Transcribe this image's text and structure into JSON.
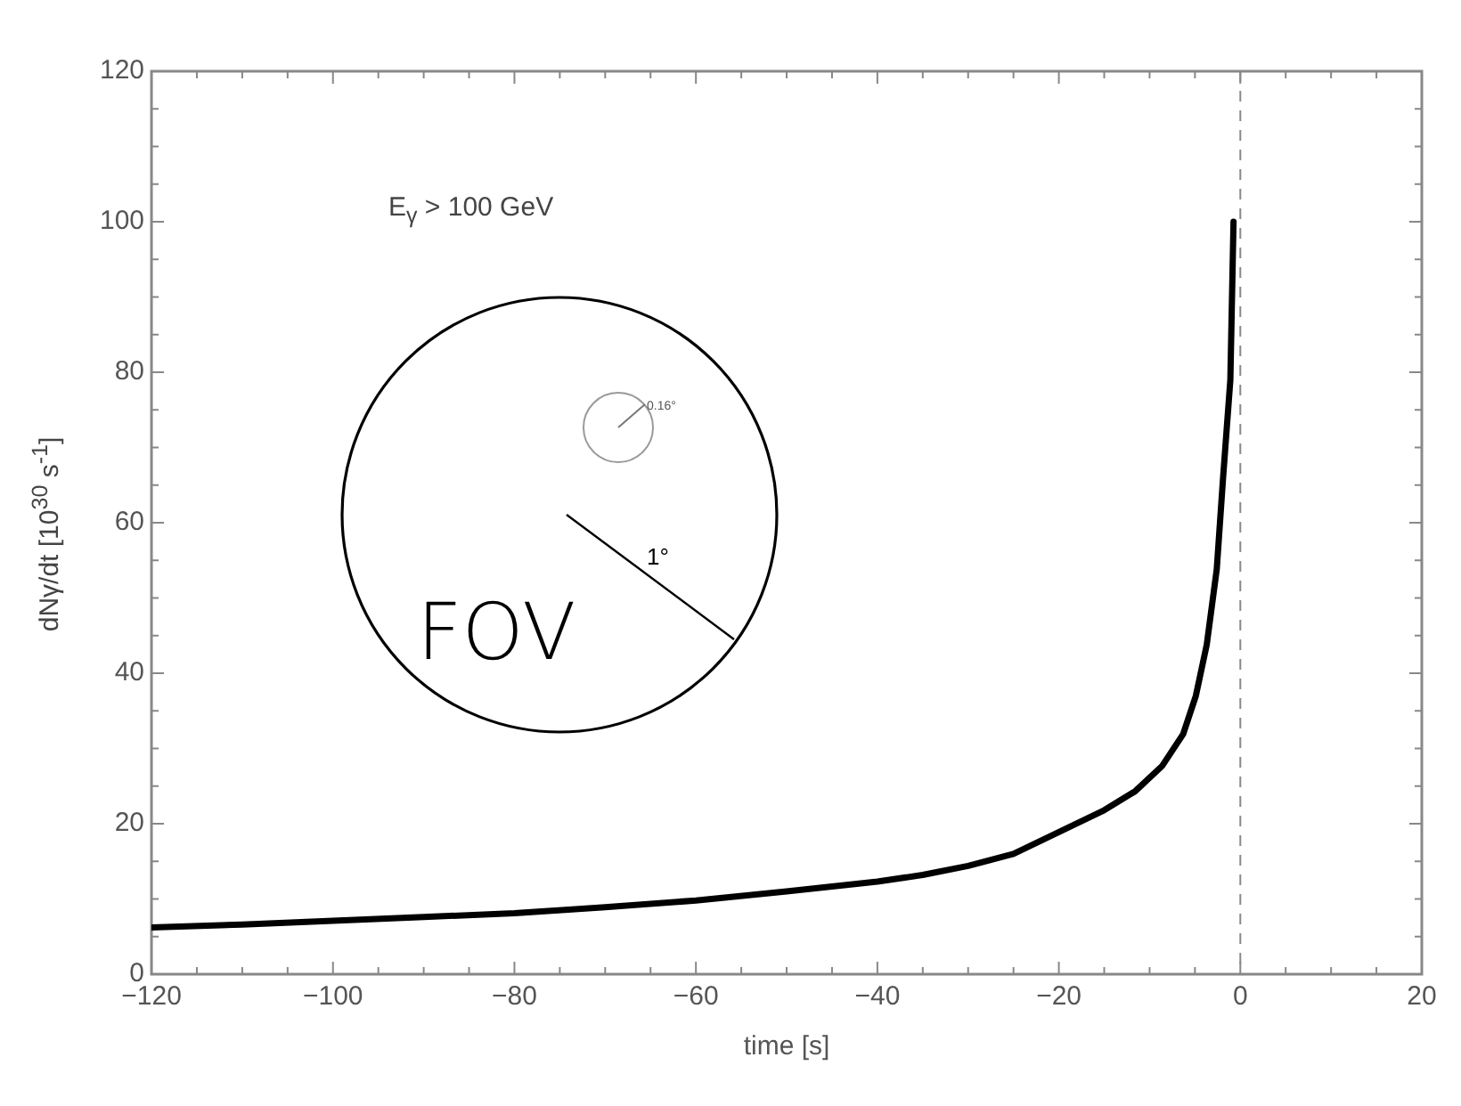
{
  "chart_data": {
    "type": "line",
    "xlabel": "time [s]",
    "ylabel": "dNγ/dt [10$^{30}$ s$^{-1}$]",
    "annotations": [
      "E$_{γ}$ > 100 GeV",
      "FOV",
      "1°",
      "0.16°"
    ],
    "x": [
      -120,
      -110,
      -100,
      -90,
      -80,
      -70,
      -60,
      -50,
      -40,
      -35,
      -30,
      -25,
      -20,
      -15,
      -11.6,
      -8.6,
      -6.3,
      -4.9,
      -3.7,
      -2.6,
      -1.9,
      -1.1,
      -0.75
    ],
    "series": [
      {
        "color": "#000000",
        "values": [
          6.2,
          6.6,
          7.1,
          7.6,
          8.1,
          8.9,
          9.8,
          11,
          12.3,
          13.2,
          14.4,
          16,
          18.9,
          21.8,
          24.3,
          27.7,
          31.9,
          37,
          43.8,
          53.8,
          66,
          79,
          100
        ]
      }
    ],
    "xlim": [
      -120,
      20
    ],
    "xticks": [
      -120,
      {
        "value": -115,
        "label": null
      },
      {
        "value": -110,
        "label": null
      },
      {
        "value": -105,
        "label": null
      },
      -100,
      {
        "value": -95,
        "label": null
      },
      {
        "value": -90,
        "label": null
      },
      {
        "value": -85,
        "label": null
      },
      -80,
      {
        "value": -75,
        "label": null
      },
      {
        "value": -70,
        "label": null
      },
      {
        "value": -65,
        "label": null
      },
      -60,
      {
        "value": -55,
        "label": null
      },
      {
        "value": -50,
        "label": null
      },
      {
        "value": -45,
        "label": null
      },
      -40,
      {
        "value": -35,
        "label": null
      },
      {
        "value": -30,
        "label": null
      },
      {
        "value": -25,
        "label": null
      },
      -20,
      {
        "value": -15,
        "label": null
      },
      {
        "value": -10,
        "label": null
      },
      {
        "value": -5,
        "label": null
      },
      0,
      {
        "value": 5,
        "label": null
      },
      {
        "value": 10,
        "label": null
      },
      {
        "value": 15,
        "label": null
      },
      20
    ],
    "ylim": [
      0,
      120
    ],
    "yticks": [
      0,
      {
        "value": 5,
        "label": null
      },
      {
        "value": 10,
        "label": null
      },
      {
        "value": 15,
        "label": null
      },
      20,
      {
        "value": 25,
        "label": null
      },
      {
        "value": 30,
        "label": null
      },
      {
        "value": 35,
        "label": null
      },
      40,
      {
        "value": 45,
        "label": null
      },
      {
        "value": 50,
        "label": null
      },
      {
        "value": 55,
        "label": null
      },
      60,
      {
        "value": 65,
        "label": null
      },
      {
        "value": 70,
        "label": null
      },
      {
        "value": 75,
        "label": null
      },
      80,
      {
        "value": 85,
        "label": null
      },
      {
        "value": 90,
        "label": null
      },
      {
        "value": 95,
        "label": null
      },
      100,
      {
        "value": 105,
        "label": null
      },
      {
        "value": 110,
        "label": null
      },
      {
        "value": 115,
        "label": null
      },
      120
    ],
    "ref_lines": [
      {
        "axis": "x",
        "value": 0,
        "label": null,
        "color": "#888888",
        "line_style": "dashed"
      }
    ],
    "grid": false,
    "legend": false,
    "marker": "none",
    "line_style": "solid"
  }
}
